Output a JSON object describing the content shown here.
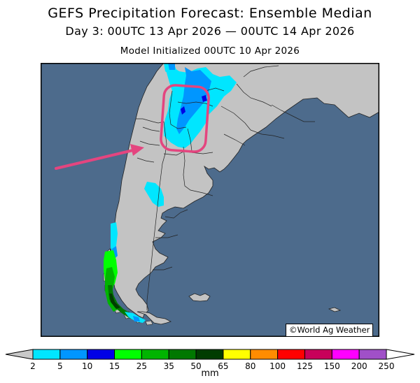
{
  "title": "GEFS Precipitation Forecast: Ensemble Median",
  "subtitle": "Day 3: 00UTC 13 Apr 2026 — 00UTC 14 Apr 2026",
  "init": "Model Initialized 00UTC 10 Apr 2026",
  "credit": "©World Ag Weather",
  "colors": {
    "ocean": "#4d6b8c",
    "land": "#c3c3c3",
    "highlight": "#e4457f"
  },
  "annotation": {
    "type": "circled region with arrow pointing to it"
  },
  "colorbar": {
    "unit": "mm",
    "ticks": [
      "2",
      "5",
      "10",
      "15",
      "25",
      "35",
      "50",
      "65",
      "80",
      "100",
      "125",
      "150",
      "200",
      "250"
    ],
    "colors": [
      "#00e6ff",
      "#0096ff",
      "#0000e6",
      "#00ff00",
      "#00b400",
      "#007800",
      "#003c00",
      "#ffff00",
      "#ff8c00",
      "#ff0000",
      "#c8005a",
      "#ff00ff",
      "#a050c8"
    ]
  }
}
